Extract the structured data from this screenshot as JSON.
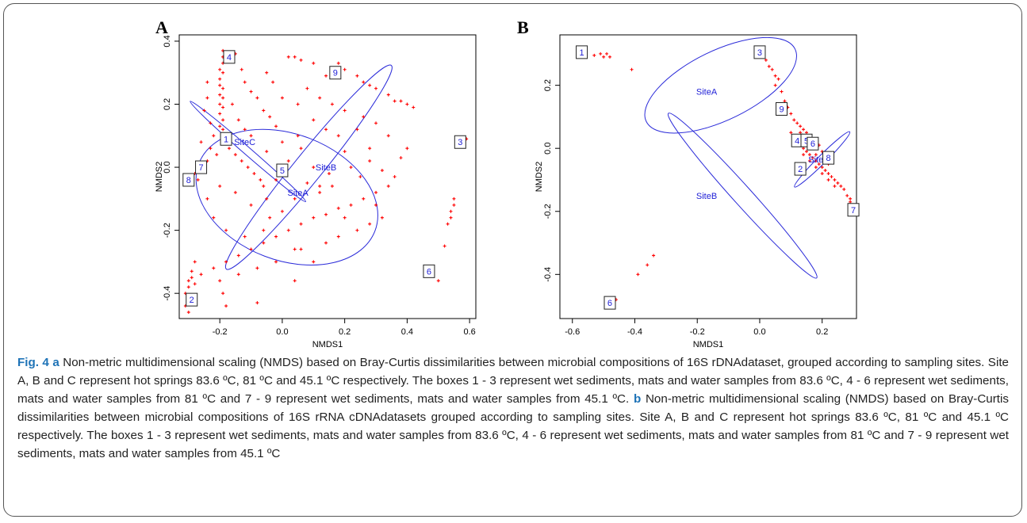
{
  "figure": {
    "caption_label": "Fig. 4",
    "caption_a_letter": "a",
    "caption_a_text": " Non-metric multidimensional scaling (NMDS) based on Bray-Curtis dissimilarities between microbial compositions of 16S rDNAdataset, grouped according to sampling sites. Site A, B and C represent hot springs 83.6 ºC, 81 ºC and 45.1 ºC respectively. The boxes 1 - 3 represent wet sediments, mats and water samples from 83.6 ºC, 4 - 6 represent wet sediments, mats and water samples from 81 ºC and 7 - 9 represent wet sediments, mats and water samples from 45.1 ºC. ",
    "caption_b_letter": "b",
    "caption_b_text": " Non-metric multidimensional scaling (NMDS) based on Bray-Curtis dissimilarities between microbial compositions of 16S rRNA cDNAdatasets grouped according to sampling sites. Site A, B and C represent hot springs 83.6 ºC, 81 ºC and 45.1 ºC respectively. The boxes 1 - 3 represent wet sediments, mats and water samples from 83.6 ºC, 4 - 6 represent wet sediments, mats and water samples from 81 ºC and 7 - 9 represent wet sediments, mats and water samples from 45.1 ºC"
  },
  "colors": {
    "points": "#ff0000",
    "ellipses": "#2b2bd9",
    "labels": "#1c1cd6",
    "axis": "#000000"
  },
  "chart_data": [
    {
      "type": "scatter",
      "panel": "A",
      "xlabel": "NMDS1",
      "ylabel": "NMDS2",
      "xlim": [
        -0.33,
        0.62
      ],
      "ylim": [
        -0.48,
        0.42
      ],
      "xticks": [
        -0.2,
        0.0,
        0.2,
        0.4,
        0.6
      ],
      "xtick_labels": [
        "-0.2",
        "0.0",
        "0.2",
        "0.4",
        "0.6"
      ],
      "yticks": [
        -0.4,
        -0.2,
        0.0,
        0.2,
        0.4
      ],
      "ytick_labels": [
        "-0.4",
        "-0.2",
        "0.0",
        "0.2",
        "0.4"
      ],
      "grid": false,
      "points": [
        [
          -0.19,
          0.37
        ],
        [
          -0.19,
          0.35
        ],
        [
          -0.19,
          0.33
        ],
        [
          -0.2,
          0.31
        ],
        [
          -0.19,
          0.3
        ],
        [
          -0.2,
          0.28
        ],
        [
          -0.2,
          0.26
        ],
        [
          -0.19,
          0.25
        ],
        [
          -0.2,
          0.23
        ],
        [
          -0.19,
          0.22
        ],
        [
          -0.2,
          0.2
        ],
        [
          -0.19,
          0.19
        ],
        [
          -0.2,
          0.17
        ],
        [
          -0.19,
          0.15
        ],
        [
          -0.2,
          0.13
        ],
        [
          -0.19,
          0.12
        ],
        [
          -0.15,
          0.36
        ],
        [
          -0.13,
          0.31
        ],
        [
          -0.12,
          0.27
        ],
        [
          -0.1,
          0.24
        ],
        [
          -0.08,
          0.22
        ],
        [
          -0.06,
          0.18
        ],
        [
          -0.04,
          0.16
        ],
        [
          -0.02,
          0.13
        ],
        [
          -0.24,
          0.27
        ],
        [
          -0.24,
          0.22
        ],
        [
          -0.25,
          0.18
        ],
        [
          -0.23,
          0.14
        ],
        [
          -0.22,
          0.1
        ],
        [
          -0.26,
          0.08
        ],
        [
          -0.23,
          0.06
        ],
        [
          -0.21,
          0.04
        ],
        [
          -0.19,
          0.08
        ],
        [
          -0.17,
          0.06
        ],
        [
          -0.15,
          0.04
        ],
        [
          -0.13,
          0.02
        ],
        [
          -0.11,
          0.0
        ],
        [
          -0.09,
          -0.02
        ],
        [
          -0.07,
          -0.04
        ],
        [
          0.02,
          0.35
        ],
        [
          0.04,
          0.35
        ],
        [
          0.06,
          0.34
        ],
        [
          0.1,
          0.33
        ],
        [
          0.18,
          0.33
        ],
        [
          0.14,
          0.29
        ],
        [
          0.2,
          0.31
        ],
        [
          0.24,
          0.29
        ],
        [
          0.26,
          0.27
        ],
        [
          0.28,
          0.26
        ],
        [
          0.3,
          0.25
        ],
        [
          0.34,
          0.23
        ],
        [
          0.36,
          0.21
        ],
        [
          0.38,
          0.21
        ],
        [
          0.4,
          0.2
        ],
        [
          0.42,
          0.19
        ],
        [
          0.08,
          0.25
        ],
        [
          0.12,
          0.22
        ],
        [
          0.16,
          0.2
        ],
        [
          0.2,
          0.18
        ],
        [
          0.26,
          0.16
        ],
        [
          0.3,
          0.14
        ],
        [
          0.34,
          0.1
        ],
        [
          0.4,
          0.06
        ],
        [
          0.38,
          0.03
        ],
        [
          0.36,
          -0.03
        ],
        [
          0.34,
          -0.06
        ],
        [
          0.3,
          -0.08
        ],
        [
          0.26,
          -0.1
        ],
        [
          0.22,
          -0.12
        ],
        [
          0.18,
          -0.13
        ],
        [
          0.14,
          -0.15
        ],
        [
          0.1,
          -0.16
        ],
        [
          0.06,
          -0.18
        ],
        [
          0.02,
          -0.2
        ],
        [
          -0.02,
          -0.22
        ],
        [
          -0.06,
          -0.24
        ],
        [
          -0.1,
          -0.26
        ],
        [
          -0.14,
          -0.28
        ],
        [
          -0.18,
          -0.3
        ],
        [
          -0.22,
          -0.32
        ],
        [
          -0.26,
          -0.34
        ],
        [
          -0.28,
          -0.3
        ],
        [
          -0.29,
          -0.33
        ],
        [
          -0.3,
          -0.36
        ],
        [
          -0.3,
          -0.38
        ],
        [
          -0.31,
          -0.4
        ],
        [
          -0.3,
          -0.42
        ],
        [
          -0.31,
          -0.44
        ],
        [
          -0.3,
          -0.46
        ],
        [
          -0.29,
          -0.35
        ],
        [
          -0.28,
          -0.37
        ],
        [
          -0.2,
          -0.36
        ],
        [
          -0.19,
          -0.4
        ],
        [
          -0.18,
          -0.44
        ],
        [
          -0.08,
          -0.43
        ],
        [
          0.04,
          -0.36
        ],
        [
          -0.05,
          0.05
        ],
        [
          0.0,
          0.08
        ],
        [
          0.05,
          0.1
        ],
        [
          0.1,
          0.0
        ],
        [
          0.08,
          -0.05
        ],
        [
          0.12,
          -0.06
        ],
        [
          0.15,
          -0.02
        ],
        [
          0.2,
          0.05
        ],
        [
          0.22,
          0.0
        ],
        [
          0.25,
          -0.03
        ],
        [
          0.28,
          0.02
        ],
        [
          0.32,
          -0.01
        ],
        [
          0.18,
          0.1
        ],
        [
          0.14,
          0.12
        ],
        [
          0.1,
          0.15
        ],
        [
          0.05,
          0.2
        ],
        [
          0.0,
          0.22
        ],
        [
          -0.03,
          0.27
        ],
        [
          -0.05,
          0.3
        ],
        [
          -0.1,
          0.1
        ],
        [
          -0.12,
          0.12
        ],
        [
          -0.14,
          0.15
        ],
        [
          -0.16,
          0.2
        ],
        [
          -0.05,
          -0.1
        ],
        [
          -0.1,
          -0.12
        ],
        [
          -0.15,
          -0.08
        ],
        [
          -0.2,
          -0.06
        ],
        [
          -0.24,
          -0.1
        ],
        [
          -0.22,
          -0.16
        ],
        [
          -0.18,
          -0.2
        ],
        [
          -0.12,
          -0.22
        ],
        [
          -0.06,
          -0.2
        ],
        [
          0.0,
          -0.14
        ],
        [
          0.04,
          -0.1
        ],
        [
          0.06,
          -0.26
        ],
        [
          0.1,
          -0.3
        ],
        [
          0.14,
          -0.24
        ],
        [
          0.18,
          -0.22
        ],
        [
          0.24,
          -0.2
        ],
        [
          0.28,
          -0.18
        ],
        [
          0.32,
          -0.16
        ],
        [
          -0.02,
          -0.3
        ],
        [
          -0.08,
          -0.32
        ],
        [
          -0.14,
          -0.34
        ],
        [
          0.12,
          -0.08
        ],
        [
          0.16,
          -0.06
        ],
        [
          0.06,
          0.06
        ],
        [
          0.02,
          0.02
        ],
        [
          -0.02,
          -0.04
        ],
        [
          -0.06,
          -0.06
        ],
        [
          0.24,
          0.12
        ],
        [
          0.28,
          0.06
        ],
        [
          0.3,
          -0.12
        ],
        [
          0.2,
          -0.16
        ],
        [
          0.04,
          -0.26
        ],
        [
          -0.04,
          -0.16
        ],
        [
          0.55,
          -0.1
        ],
        [
          0.55,
          -0.12
        ],
        [
          0.54,
          -0.14
        ],
        [
          0.54,
          -0.16
        ],
        [
          0.53,
          -0.18
        ],
        [
          0.52,
          -0.25
        ],
        [
          0.59,
          0.09
        ],
        [
          0.5,
          -0.36
        ],
        [
          -0.28,
          -0.02
        ],
        [
          -0.27,
          -0.04
        ],
        [
          -0.26,
          0.0
        ],
        [
          -0.3,
          -0.04
        ],
        [
          -0.24,
          0.02
        ]
      ],
      "ellipses": [
        {
          "name": "SiteA",
          "cx": 0.015,
          "cy": -0.095,
          "rx": 0.302,
          "ry": 0.2,
          "angle": 21
        },
        {
          "name": "SiteB",
          "cx": 0.085,
          "cy": 0.0,
          "rx": 0.42,
          "ry": 0.045,
          "angle": -51
        },
        {
          "name": "SiteC",
          "cx": -0.11,
          "cy": 0.05,
          "rx": 0.245,
          "ry": 0.012,
          "angle": 41
        }
      ],
      "ellipse_labels": [
        {
          "text": "SiteA",
          "x": 0.05,
          "y": -0.08
        },
        {
          "text": "SiteB",
          "x": 0.14,
          "y": 0.0
        },
        {
          "text": "SiteC",
          "x": -0.12,
          "y": 0.08
        }
      ],
      "boxes": [
        {
          "label": "1",
          "x": -0.18,
          "y": 0.09
        },
        {
          "label": "2",
          "x": -0.29,
          "y": -0.42
        },
        {
          "label": "3",
          "x": 0.57,
          "y": 0.08
        },
        {
          "label": "4",
          "x": -0.17,
          "y": 0.35
        },
        {
          "label": "5",
          "x": 0.0,
          "y": -0.01
        },
        {
          "label": "6",
          "x": 0.47,
          "y": -0.33
        },
        {
          "label": "7",
          "x": -0.26,
          "y": 0.0
        },
        {
          "label": "8",
          "x": -0.3,
          "y": -0.04
        },
        {
          "label": "9",
          "x": 0.17,
          "y": 0.3
        }
      ]
    },
    {
      "type": "scatter",
      "panel": "B",
      "xlabel": "NMDS1",
      "ylabel": "NMDS2",
      "xlim": [
        -0.64,
        0.31
      ],
      "ylim": [
        -0.54,
        0.36
      ],
      "xticks": [
        -0.6,
        -0.4,
        -0.2,
        0.0,
        0.2
      ],
      "xtick_labels": [
        "-0.6",
        "-0.4",
        "-0.2",
        "0.0",
        "0.2"
      ],
      "yticks": [
        -0.4,
        -0.2,
        0.0,
        0.2
      ],
      "ytick_labels": [
        "-0.4",
        "-0.2",
        "0.0",
        "0.2"
      ],
      "grid": false,
      "points": [
        [
          -0.53,
          0.295
        ],
        [
          -0.51,
          0.3
        ],
        [
          -0.5,
          0.29
        ],
        [
          -0.49,
          0.3
        ],
        [
          -0.48,
          0.29
        ],
        [
          -0.41,
          0.25
        ],
        [
          0.02,
          0.28
        ],
        [
          0.03,
          0.26
        ],
        [
          0.04,
          0.25
        ],
        [
          0.05,
          0.23
        ],
        [
          0.06,
          0.22
        ],
        [
          0.05,
          0.2
        ],
        [
          0.07,
          0.18
        ],
        [
          0.08,
          0.15
        ],
        [
          0.09,
          0.13
        ],
        [
          0.1,
          0.11
        ],
        [
          0.11,
          0.09
        ],
        [
          0.12,
          0.08
        ],
        [
          0.13,
          0.07
        ],
        [
          0.14,
          0.06
        ],
        [
          0.15,
          0.05
        ],
        [
          0.16,
          0.04
        ],
        [
          0.11,
          0.03
        ],
        [
          0.12,
          0.02
        ],
        [
          0.13,
          0.01
        ],
        [
          0.14,
          0.0
        ],
        [
          0.15,
          -0.01
        ],
        [
          0.16,
          -0.02
        ],
        [
          0.17,
          -0.03
        ],
        [
          0.18,
          -0.04
        ],
        [
          0.19,
          -0.05
        ],
        [
          0.2,
          -0.06
        ],
        [
          0.21,
          -0.07
        ],
        [
          0.22,
          -0.08
        ],
        [
          0.23,
          -0.09
        ],
        [
          0.24,
          -0.1
        ],
        [
          0.25,
          -0.11
        ],
        [
          0.26,
          -0.12
        ],
        [
          0.27,
          -0.13
        ],
        [
          0.28,
          -0.15
        ],
        [
          0.29,
          -0.16
        ],
        [
          0.29,
          -0.17
        ],
        [
          0.14,
          0.04
        ],
        [
          0.16,
          0.02
        ],
        [
          0.17,
          0.0
        ],
        [
          0.18,
          -0.02
        ],
        [
          0.19,
          0.01
        ],
        [
          0.2,
          -0.01
        ],
        [
          0.21,
          -0.03
        ],
        [
          0.22,
          -0.05
        ],
        [
          0.13,
          0.05
        ],
        [
          0.15,
          0.03
        ],
        [
          0.1,
          0.05
        ],
        [
          0.12,
          0.04
        ],
        [
          0.17,
          0.03
        ],
        [
          0.15,
          0.01
        ],
        [
          0.14,
          -0.02
        ],
        [
          0.16,
          -0.04
        ],
        [
          0.18,
          -0.06
        ],
        [
          0.2,
          -0.08
        ],
        [
          0.22,
          -0.1
        ],
        [
          0.24,
          -0.12
        ],
        [
          -0.34,
          -0.34
        ],
        [
          -0.36,
          -0.37
        ],
        [
          -0.39,
          -0.4
        ],
        [
          -0.46,
          -0.48
        ]
      ],
      "ellipses": [
        {
          "name": "SiteA",
          "cx": -0.125,
          "cy": 0.2,
          "rx": 0.265,
          "ry": 0.11,
          "angle": -26
        },
        {
          "name": "SiteB",
          "cx": -0.055,
          "cy": -0.15,
          "rx": 0.355,
          "ry": 0.03,
          "angle": 48
        },
        {
          "name": "SiteC",
          "cx": 0.2,
          "cy": -0.035,
          "rx": 0.125,
          "ry": 0.013,
          "angle": -45
        }
      ],
      "ellipse_labels": [
        {
          "text": "SiteA",
          "x": -0.17,
          "y": 0.18
        },
        {
          "text": "SiteB",
          "x": -0.17,
          "y": -0.15
        },
        {
          "text": "SiteC",
          "x": 0.19,
          "y": -0.035
        }
      ],
      "boxes": [
        {
          "label": "1",
          "x": -0.57,
          "y": 0.305
        },
        {
          "label": "2",
          "x": 0.13,
          "y": -0.065
        },
        {
          "label": "3",
          "x": 0.0,
          "y": 0.305
        },
        {
          "label": "4",
          "x": 0.12,
          "y": 0.025
        },
        {
          "label": "5",
          "x": 0.15,
          "y": 0.025
        },
        {
          "label": "6",
          "x": 0.17,
          "y": 0.015
        },
        {
          "label": "7",
          "x": 0.3,
          "y": -0.195
        },
        {
          "label": "8",
          "x": 0.22,
          "y": -0.03
        },
        {
          "label": "9",
          "x": 0.07,
          "y": 0.125
        },
        {
          "label": "6",
          "x": -0.48,
          "y": -0.49
        }
      ]
    }
  ]
}
